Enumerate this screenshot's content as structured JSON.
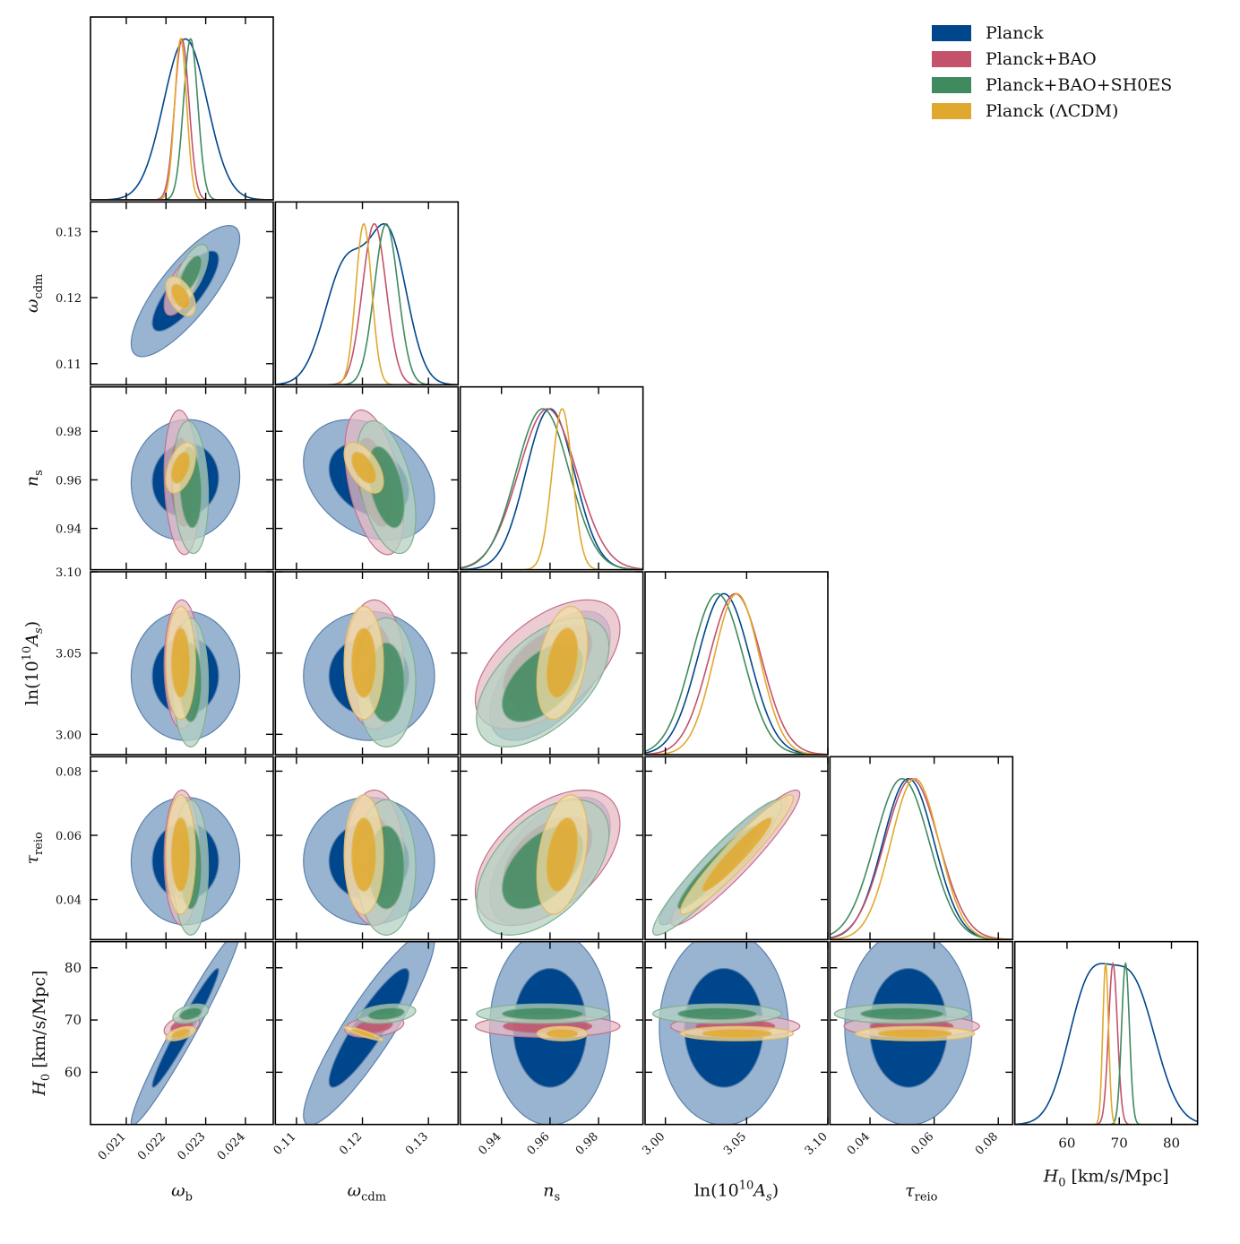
{
  "chart_data": {
    "type": "corner",
    "title": "",
    "parameters": [
      {
        "key": "wb",
        "label": "ω_b",
        "label_main": "ω",
        "label_sub": "b",
        "range": [
          0.0201,
          0.0247
        ],
        "ticks": [
          0.021,
          0.022,
          0.023,
          0.024
        ],
        "tick_labels": [
          "0.021",
          "0.022",
          "0.023",
          "0.024"
        ]
      },
      {
        "key": "wcdm",
        "label": "ω_cdm",
        "label_main": "ω",
        "label_sub": "cdm",
        "range": [
          0.1068,
          0.1345
        ],
        "ticks": [
          0.11,
          0.12,
          0.13
        ],
        "tick_labels": [
          "0.11",
          "0.12",
          "0.13"
        ]
      },
      {
        "key": "ns",
        "label": "n_s",
        "label_main": "n",
        "label_sub": "s",
        "range": [
          0.923,
          0.9983
        ],
        "ticks": [
          0.94,
          0.96,
          0.98
        ],
        "tick_labels": [
          "0.94",
          "0.96",
          "0.98"
        ]
      },
      {
        "key": "lnAs",
        "label": "ln(10^10 A_s)",
        "label_main": "ln(10",
        "label_sup": "10",
        "label_tail": "A",
        "label_sub": "s",
        "range": [
          2.9875,
          3.1
        ],
        "ticks": [
          3.0,
          3.05,
          3.1
        ],
        "tick_labels": [
          "3.00",
          "3.05",
          "3.10"
        ]
      },
      {
        "key": "tau",
        "label": "τ_reio",
        "label_main": "τ",
        "label_sub": "reio",
        "range": [
          0.0275,
          0.0845
        ],
        "ticks": [
          0.04,
          0.06,
          0.08
        ],
        "tick_labels": [
          "0.04",
          "0.06",
          "0.08"
        ]
      },
      {
        "key": "H0",
        "label": "H_0 [km/s/Mpc]",
        "label_main": "H",
        "label_sub": "0",
        "label_tail": "[km/s/Mpc]",
        "range": [
          50.0,
          85.0
        ],
        "ticks": [
          60,
          70,
          80
        ],
        "tick_labels": [
          "60",
          "70",
          "80"
        ]
      }
    ],
    "series": [
      {
        "name": "Planck",
        "color": "#00468c",
        "fill_light": "#99b4d1",
        "edge": "#5b80ab",
        "mean": [
          0.02249,
          0.121,
          0.96,
          3.036,
          0.052,
          68.5
        ],
        "sigma": [
          0.00055,
          0.004,
          0.01,
          0.016,
          0.008,
          7.5
        ],
        "corr": [
          [
            1.0,
            0.8,
            0.05,
            0.0,
            0.0,
            0.97
          ],
          [
            0.8,
            1.0,
            -0.3,
            0.0,
            0.0,
            0.9
          ],
          [
            0.05,
            -0.3,
            1.0,
            0.6,
            0.55,
            0.0
          ],
          [
            0.0,
            0.0,
            0.6,
            1.0,
            0.94,
            0.0
          ],
          [
            0.0,
            0.0,
            0.55,
            0.94,
            1.0,
            0.0
          ],
          [
            0.97,
            0.9,
            0.0,
            0.0,
            0.0,
            1.0
          ]
        ]
      },
      {
        "name": "Planck+BAO",
        "color": "#c3526b",
        "fill_light": "#e6bac4",
        "edge": "#c3708a",
        "mean": [
          0.0224,
          0.1218,
          0.959,
          3.043,
          0.053,
          68.8
        ],
        "sigma": [
          0.00018,
          0.0018,
          0.012,
          0.016,
          0.0085,
          0.85
        ],
        "corr": [
          [
            1.0,
            0.65,
            -0.15,
            0.0,
            0.0,
            0.4
          ],
          [
            0.65,
            1.0,
            -0.45,
            0.0,
            0.0,
            0.3
          ],
          [
            -0.15,
            -0.45,
            1.0,
            0.55,
            0.5,
            0.0
          ],
          [
            0.0,
            0.0,
            0.55,
            1.0,
            0.94,
            0.0
          ],
          [
            0.0,
            0.0,
            0.5,
            0.94,
            1.0,
            0.0
          ],
          [
            0.4,
            0.3,
            0.0,
            0.0,
            0.0,
            1.0
          ]
        ]
      },
      {
        "name": "Planck+BAO+SH0ES",
        "color": "#3f8a5f",
        "fill_light": "#b6d2c1",
        "edge": "#7fae90",
        "mean": [
          0.02262,
          0.1236,
          0.957,
          3.032,
          0.05,
          71.2
        ],
        "sigma": [
          0.00018,
          0.0018,
          0.011,
          0.016,
          0.0085,
          0.75
        ],
        "corr": [
          [
            1.0,
            0.65,
            -0.15,
            0.0,
            0.0,
            0.4
          ],
          [
            0.65,
            1.0,
            -0.45,
            0.0,
            0.0,
            0.3
          ],
          [
            -0.15,
            -0.45,
            1.0,
            0.55,
            0.5,
            0.0
          ],
          [
            0.0,
            0.0,
            0.55,
            1.0,
            0.94,
            0.0
          ],
          [
            0.0,
            0.0,
            0.5,
            0.94,
            1.0,
            0.0
          ],
          [
            0.4,
            0.3,
            0.0,
            0.0,
            0.0,
            1.0
          ]
        ]
      },
      {
        "name": "Planck (ΛCDM)",
        "color": "#e0a82e",
        "fill_light": "#f4dea6",
        "edge": "#e0bb62",
        "mean": [
          0.02237,
          0.1202,
          0.965,
          3.044,
          0.054,
          67.4
        ],
        "sigma": [
          0.00015,
          0.0012,
          0.0042,
          0.014,
          0.0075,
          0.55
        ],
        "corr": [
          [
            1.0,
            -0.5,
            0.45,
            0.0,
            0.0,
            0.55
          ],
          [
            -0.5,
            1.0,
            -0.55,
            0.0,
            0.0,
            -0.9
          ],
          [
            0.45,
            -0.55,
            1.0,
            0.35,
            0.35,
            0.0
          ],
          [
            0.0,
            0.0,
            0.35,
            1.0,
            0.95,
            0.0
          ],
          [
            0.0,
            0.0,
            0.35,
            0.95,
            1.0,
            0.0
          ],
          [
            0.55,
            -0.9,
            0.0,
            0.0,
            0.0,
            1.0
          ]
        ]
      }
    ],
    "planck_1d_shape": {
      "wcdm": {
        "components": [
          [
            0.1175,
            0.0032,
            0.8
          ],
          [
            0.124,
            0.0028,
            0.95
          ]
        ]
      },
      "H0": {
        "components": [
          [
            64.0,
            4.0,
            0.85
          ],
          [
            72.5,
            4.5,
            0.92
          ]
        ]
      }
    },
    "legend_position": "top-right",
    "contour_levels": [
      "68%",
      "95%"
    ]
  }
}
